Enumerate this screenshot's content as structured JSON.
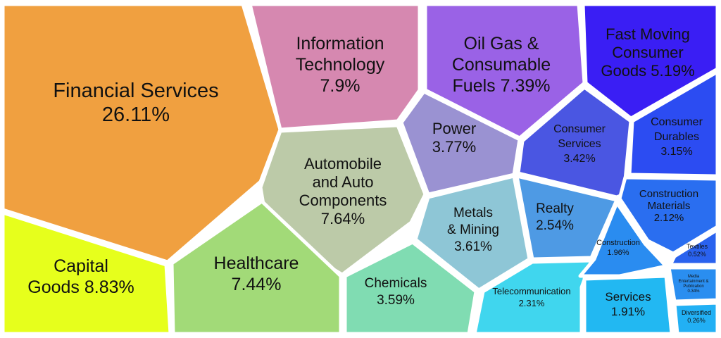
{
  "chart_data": {
    "type": "voronoi-treemap",
    "unit": "%",
    "items": [
      {
        "name": "Financial Services",
        "value": 26.11,
        "color": "#f0a040",
        "label_lines": [
          "Financial Services",
          "26.11%"
        ]
      },
      {
        "name": "Information Technology",
        "value": 7.9,
        "color": "#d688b0",
        "label_lines": [
          "Information",
          "Technology",
          "7.9%"
        ]
      },
      {
        "name": "Oil Gas & Consumable Fuels",
        "value": 7.39,
        "color": "#9a62e6",
        "label_lines": [
          "Oil Gas &",
          "Consumable",
          "Fuels 7.39%"
        ]
      },
      {
        "name": "Fast Moving Consumer Goods",
        "value": 5.19,
        "color": "#3a1ef4",
        "label_lines": [
          "Fast Moving",
          "Consumer",
          "Goods 5.19%"
        ]
      },
      {
        "name": "Automobile and Auto Components",
        "value": 7.64,
        "color": "#bccaa8",
        "label_lines": [
          "Automobile",
          "and Auto",
          "Components",
          "7.64%"
        ]
      },
      {
        "name": "Power",
        "value": 3.77,
        "color": "#9a92d2",
        "label_lines": [
          "Power",
          "3.77%"
        ]
      },
      {
        "name": "Consumer Services",
        "value": 3.42,
        "color": "#4a56e2",
        "label_lines": [
          "Consumer",
          "Services",
          "3.42%"
        ]
      },
      {
        "name": "Consumer Durables",
        "value": 3.15,
        "color": "#2c4cf2",
        "label_lines": [
          "Consumer",
          "Durables",
          "3.15%"
        ]
      },
      {
        "name": "Capital Goods",
        "value": 8.83,
        "color": "#e6ff1c",
        "label_lines": [
          "Capital",
          "Goods 8.83%"
        ]
      },
      {
        "name": "Healthcare",
        "value": 7.44,
        "color": "#a2da78",
        "label_lines": [
          "Healthcare",
          "7.44%"
        ]
      },
      {
        "name": "Metals & Mining",
        "value": 3.61,
        "color": "#8ec6d6",
        "label_lines": [
          "Metals",
          "& Mining",
          "3.61%"
        ]
      },
      {
        "name": "Realty",
        "value": 2.54,
        "color": "#4e9ae4",
        "label_lines": [
          "Realty",
          "2.54%"
        ]
      },
      {
        "name": "Construction Materials",
        "value": 2.12,
        "color": "#2a6ef0",
        "label_lines": [
          "Construction",
          "Materials",
          "2.12%"
        ]
      },
      {
        "name": "Chemicals",
        "value": 3.59,
        "color": "#80dcb2",
        "label_lines": [
          "Chemicals",
          "3.59%"
        ]
      },
      {
        "name": "Telecommunication",
        "value": 2.31,
        "color": "#40d6ee",
        "label_lines": [
          "Telecommunication",
          "2.31%"
        ]
      },
      {
        "name": "Construction",
        "value": 1.96,
        "color": "#2a8cf0",
        "label_lines": [
          "Construction",
          "1.96%"
        ]
      },
      {
        "name": "Services",
        "value": 1.91,
        "color": "#22b8f2",
        "label_lines": [
          "Services",
          "1.91%"
        ]
      },
      {
        "name": "Textiles",
        "value": 0.52,
        "color": "#2a62ee",
        "label_lines": [
          "Textiles",
          "0.52%"
        ]
      },
      {
        "name": "Media Entertainment & Publication",
        "value": 0.34,
        "color": "#2a8ef0",
        "label_lines": [
          "Media",
          "Entertainment &",
          "Publication",
          "0.34%"
        ]
      },
      {
        "name": "Diversified",
        "value": 0.26,
        "color": "#22b0f4",
        "label_lines": [
          "Diversified",
          "0.26%"
        ]
      }
    ]
  }
}
